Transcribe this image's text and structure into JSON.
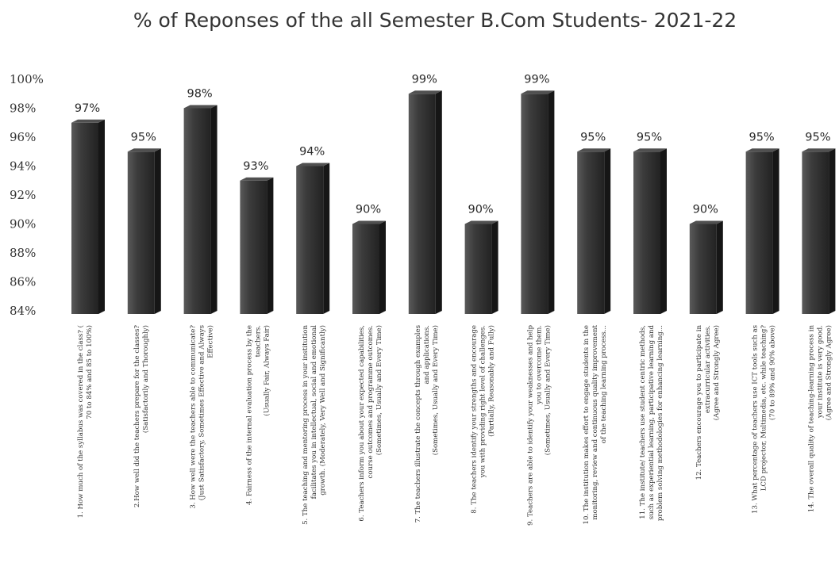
{
  "chart_data": {
    "type": "bar",
    "title": "% of Reponses of the all Semester B.Com Students- 2021-22",
    "xlabel": "",
    "ylabel": "",
    "ylim": [
      84,
      100
    ],
    "yticks": [
      "84%",
      "86%",
      "88%",
      "90%",
      "92%",
      "94%",
      "96%",
      "98%",
      "100%"
    ],
    "grid": false,
    "legend": "none",
    "bar_color": "#3a3a3a",
    "values": [
      97,
      95,
      98,
      93,
      94,
      90,
      99,
      90,
      99,
      95,
      95,
      90,
      95,
      95
    ],
    "value_labels": [
      "97%",
      "95%",
      "98%",
      "93%",
      "94%",
      "90%",
      "99%",
      "90%",
      "99%",
      "95%",
      "95%",
      "90%",
      "95%",
      "95%"
    ],
    "categories": [
      [
        "1. How much of the syllabus was covered in the class? (",
        "70 to 84% and 85 to 100%)"
      ],
      [
        "2.How well did the teachers prepare for the classes?",
        "(Satisfactorily and Thoroughly)"
      ],
      [
        "3. How well were the teachers able to communicate?",
        "(Just Satisfactory, Sometimes Effective and Always",
        "Effective)"
      ],
      [
        "4. Fairness of the internal evaluation process by the",
        "teachers.",
        "(Usually Fair, Always Fair)"
      ],
      [
        "5. The teaching and mentoring process in your institution",
        "facilitates you in intellectual, social and emotional",
        "growth. (Moderately, Very Well and Significantly)"
      ],
      [
        "6. Teachers inform you about your expected capabilities,",
        "course outcomes and programme outcomes.",
        "(Sometimes, Usually and Every Time)"
      ],
      [
        "7. The teachers illustrate the concepts through examples",
        "and applications.",
        "(Sometimes, Usually and Every Time)"
      ],
      [
        "8. The teachers identify your strengths and encourage",
        "you with providing right level of challenges.",
        "(Partially, Reasonably and Fully)"
      ],
      [
        "9. Teachers are able to identify your weaknesses and help",
        "you to overcome them.",
        "(Sometimes, Usually and Every Time)"
      ],
      [
        "10. The institution makes effort to engage students in the",
        "monitoring, review and continuous quality improvement",
        "of the teaching learning process..."
      ],
      [
        "11. The institute/ teachers use student centric methods,",
        "such as experiential learning, participative learning and",
        "problem solving methodologies for enhancing learning..."
      ],
      [
        "12. Teachers encourage you to participate in",
        "extracurricular activities.",
        "(Agree and Strongly Agree)"
      ],
      [
        "13. What percentage of teachers use ICT tools such as",
        "LCD projector, Multimedia, etc. while teaching?",
        "(70 to 89% and 90% above)"
      ],
      [
        "14. The overall quality of teaching-learning process in",
        "your institute is very good.",
        "(Agree and Strongly Agree)"
      ]
    ]
  }
}
